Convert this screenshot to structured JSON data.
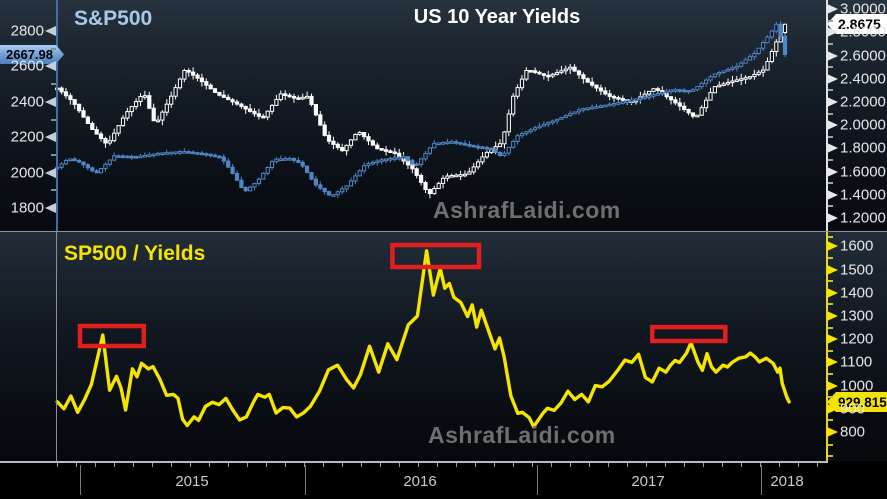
{
  "top_panel": {
    "sp_label": "S&P500",
    "title": "US 10 Year Yields",
    "watermark": "AshrafLaidi.com",
    "sp_badge": "2667.98",
    "yield_badge": "2.8675",
    "left_axis_ticks": [
      "2800",
      "2600",
      "2400",
      "2200",
      "2000",
      "1800"
    ],
    "right_axis_ticks": [
      "3.0000",
      "2.8000",
      "2.6000",
      "2.4000",
      "2.2000",
      "2.0000",
      "1.8000",
      "1.6000",
      "1.4000",
      "1.2000"
    ]
  },
  "bottom_panel": {
    "title": "SP500 / Yields",
    "watermark": "AshrafLaidi.com",
    "ratio_badge": "929.8159",
    "right_axis_ticks": [
      "1600",
      "1500",
      "1400",
      "1300",
      "1200",
      "1100",
      "1000",
      "900",
      "800"
    ]
  },
  "time_axis": {
    "year_labels": [
      "2015",
      "2016",
      "2017",
      "2018"
    ]
  },
  "colors": {
    "sp_blue": "#4f86c6",
    "sp_label_blue": "#a8c8e8",
    "yields_white": "#ffffff",
    "ratio_yellow": "#f5e400",
    "highlight_red": "#e01f1f",
    "watermark_gray": "#6f6f6f",
    "axis_blue": "#3d6fa8",
    "axis_yellow": "#e8d81a"
  },
  "chart_data": [
    {
      "type": "candlestick",
      "panel": "top",
      "title": "US 10 Year Yields",
      "x_range": [
        2014.9,
        2018.11
      ],
      "x_tick_years": [
        2015,
        2016,
        2017,
        2018
      ],
      "series": [
        {
          "name": "S&P500",
          "color_key": "sp_blue",
          "axis": "left",
          "axis_ticks": [
            2800,
            2600,
            2400,
            2200,
            2000,
            1800
          ],
          "last_value": 2667.98,
          "close_estimates": [
            [
              2014.9,
              2030
            ],
            [
              2014.95,
              2080
            ],
            [
              2015.0,
              2058
            ],
            [
              2015.07,
              1995
            ],
            [
              2015.15,
              2095
            ],
            [
              2015.25,
              2090
            ],
            [
              2015.35,
              2110
            ],
            [
              2015.45,
              2120
            ],
            [
              2015.55,
              2105
            ],
            [
              2015.62,
              2085
            ],
            [
              2015.68,
              1975
            ],
            [
              2015.72,
              1890
            ],
            [
              2015.78,
              1955
            ],
            [
              2015.85,
              2075
            ],
            [
              2015.92,
              2080
            ],
            [
              2015.97,
              2050
            ],
            [
              2016.03,
              1935
            ],
            [
              2016.1,
              1865
            ],
            [
              2016.17,
              1925
            ],
            [
              2016.25,
              2045
            ],
            [
              2016.33,
              2075
            ],
            [
              2016.42,
              2090
            ],
            [
              2016.47,
              2035
            ],
            [
              2016.55,
              2165
            ],
            [
              2016.63,
              2175
            ],
            [
              2016.72,
              2150
            ],
            [
              2016.8,
              2135
            ],
            [
              2016.85,
              2090
            ],
            [
              2016.92,
              2210
            ],
            [
              2017.0,
              2255
            ],
            [
              2017.1,
              2305
            ],
            [
              2017.2,
              2360
            ],
            [
              2017.3,
              2380
            ],
            [
              2017.4,
              2405
            ],
            [
              2017.5,
              2435
            ],
            [
              2017.6,
              2470
            ],
            [
              2017.68,
              2460
            ],
            [
              2017.78,
              2555
            ],
            [
              2017.88,
              2600
            ],
            [
              2017.96,
              2675
            ],
            [
              2018.03,
              2790
            ],
            [
              2018.06,
              2850
            ],
            [
              2018.09,
              2668
            ]
          ]
        },
        {
          "name": "US 10 Year Yields",
          "color_key": "yields_white",
          "axis": "right",
          "axis_ticks": [
            3.0,
            2.8,
            2.6,
            2.4,
            2.2,
            2.0,
            1.8,
            1.6,
            1.4,
            1.2
          ],
          "last_value": 2.8675,
          "close_estimates": [
            [
              2014.9,
              2.32
            ],
            [
              2014.97,
              2.2
            ],
            [
              2015.05,
              1.97
            ],
            [
              2015.12,
              1.83
            ],
            [
              2015.2,
              2.1
            ],
            [
              2015.28,
              2.28
            ],
            [
              2015.33,
              2.0
            ],
            [
              2015.4,
              2.25
            ],
            [
              2015.46,
              2.48
            ],
            [
              2015.52,
              2.4
            ],
            [
              2015.6,
              2.27
            ],
            [
              2015.7,
              2.17
            ],
            [
              2015.8,
              2.06
            ],
            [
              2015.88,
              2.27
            ],
            [
              2015.95,
              2.23
            ],
            [
              2016.0,
              2.25
            ],
            [
              2016.08,
              1.88
            ],
            [
              2016.15,
              1.78
            ],
            [
              2016.22,
              1.95
            ],
            [
              2016.3,
              1.8
            ],
            [
              2016.38,
              1.76
            ],
            [
              2016.46,
              1.62
            ],
            [
              2016.53,
              1.4
            ],
            [
              2016.6,
              1.56
            ],
            [
              2016.7,
              1.58
            ],
            [
              2016.78,
              1.76
            ],
            [
              2016.85,
              1.85
            ],
            [
              2016.9,
              2.25
            ],
            [
              2016.96,
              2.48
            ],
            [
              2017.05,
              2.42
            ],
            [
              2017.15,
              2.5
            ],
            [
              2017.22,
              2.38
            ],
            [
              2017.32,
              2.25
            ],
            [
              2017.42,
              2.2
            ],
            [
              2017.52,
              2.32
            ],
            [
              2017.62,
              2.18
            ],
            [
              2017.7,
              2.06
            ],
            [
              2017.78,
              2.33
            ],
            [
              2017.86,
              2.38
            ],
            [
              2017.94,
              2.42
            ],
            [
              2018.0,
              2.48
            ],
            [
              2018.04,
              2.66
            ],
            [
              2018.09,
              2.87
            ]
          ]
        }
      ]
    },
    {
      "type": "line",
      "panel": "bottom",
      "title": "SP500 / Yields",
      "color_key": "ratio_yellow",
      "last_value": 929.8159,
      "axis_ticks": [
        1600,
        1500,
        1400,
        1300,
        1200,
        1100,
        1000,
        900,
        800
      ],
      "points": [
        [
          2014.9,
          930
        ],
        [
          2014.93,
          900
        ],
        [
          2014.96,
          955
        ],
        [
          2014.99,
          885
        ],
        [
          2015.02,
          940
        ],
        [
          2015.05,
          1005
        ],
        [
          2015.1,
          1218
        ],
        [
          2015.13,
          980
        ],
        [
          2015.16,
          1040
        ],
        [
          2015.18,
          990
        ],
        [
          2015.2,
          895
        ],
        [
          2015.23,
          1072
        ],
        [
          2015.25,
          1038
        ],
        [
          2015.27,
          1096
        ],
        [
          2015.3,
          1072
        ],
        [
          2015.32,
          1082
        ],
        [
          2015.35,
          1028
        ],
        [
          2015.38,
          958
        ],
        [
          2015.41,
          962
        ],
        [
          2015.43,
          945
        ],
        [
          2015.45,
          855
        ],
        [
          2015.47,
          828
        ],
        [
          2015.5,
          865
        ],
        [
          2015.52,
          850
        ],
        [
          2015.55,
          910
        ],
        [
          2015.58,
          928
        ],
        [
          2015.61,
          918
        ],
        [
          2015.64,
          945
        ],
        [
          2015.67,
          895
        ],
        [
          2015.7,
          852
        ],
        [
          2015.73,
          865
        ],
        [
          2015.76,
          928
        ],
        [
          2015.78,
          962
        ],
        [
          2015.81,
          950
        ],
        [
          2015.83,
          962
        ],
        [
          2015.86,
          882
        ],
        [
          2015.89,
          905
        ],
        [
          2015.92,
          903
        ],
        [
          2015.95,
          865
        ],
        [
          2015.98,
          882
        ],
        [
          2016.01,
          910
        ],
        [
          2016.05,
          975
        ],
        [
          2016.09,
          1068
        ],
        [
          2016.13,
          1088
        ],
        [
          2016.17,
          1025
        ],
        [
          2016.2,
          990
        ],
        [
          2016.23,
          1047
        ],
        [
          2016.27,
          1170
        ],
        [
          2016.31,
          1058
        ],
        [
          2016.35,
          1180
        ],
        [
          2016.39,
          1112
        ],
        [
          2016.44,
          1262
        ],
        [
          2016.48,
          1300
        ],
        [
          2016.52,
          1581
        ],
        [
          2016.55,
          1390
        ],
        [
          2016.58,
          1505
        ],
        [
          2016.6,
          1420
        ],
        [
          2016.62,
          1440
        ],
        [
          2016.64,
          1380
        ],
        [
          2016.67,
          1358
        ],
        [
          2016.7,
          1298
        ],
        [
          2016.72,
          1348
        ],
        [
          2016.74,
          1252
        ],
        [
          2016.76,
          1325
        ],
        [
          2016.79,
          1242
        ],
        [
          2016.82,
          1158
        ],
        [
          2016.84,
          1205
        ],
        [
          2016.86,
          1125
        ],
        [
          2016.89,
          955
        ],
        [
          2016.92,
          880
        ],
        [
          2016.94,
          885
        ],
        [
          2016.97,
          862
        ],
        [
          2016.99,
          823
        ],
        [
          2017.03,
          880
        ],
        [
          2017.05,
          902
        ],
        [
          2017.08,
          893
        ],
        [
          2017.11,
          926
        ],
        [
          2017.14,
          976
        ],
        [
          2017.17,
          940
        ],
        [
          2017.2,
          962
        ],
        [
          2017.23,
          930
        ],
        [
          2017.26,
          1000
        ],
        [
          2017.29,
          995
        ],
        [
          2017.32,
          1018
        ],
        [
          2017.36,
          1068
        ],
        [
          2017.39,
          1110
        ],
        [
          2017.42,
          1100
        ],
        [
          2017.45,
          1135
        ],
        [
          2017.48,
          1035
        ],
        [
          2017.51,
          1016
        ],
        [
          2017.54,
          1075
        ],
        [
          2017.57,
          1058
        ],
        [
          2017.59,
          1088
        ],
        [
          2017.61,
          1108
        ],
        [
          2017.63,
          1100
        ],
        [
          2017.66,
          1140
        ],
        [
          2017.68,
          1185
        ],
        [
          2017.71,
          1102
        ],
        [
          2017.73,
          1066
        ],
        [
          2017.75,
          1138
        ],
        [
          2017.77,
          1080
        ],
        [
          2017.79,
          1058
        ],
        [
          2017.82,
          1088
        ],
        [
          2017.84,
          1080
        ],
        [
          2017.86,
          1100
        ],
        [
          2017.89,
          1118
        ],
        [
          2017.92,
          1124
        ],
        [
          2017.94,
          1140
        ],
        [
          2017.96,
          1124
        ],
        [
          2017.98,
          1102
        ],
        [
          2018.01,
          1118
        ],
        [
          2018.04,
          1096
        ],
        [
          2018.06,
          1058
        ],
        [
          2018.07,
          1075
        ],
        [
          2018.08,
          1010
        ],
        [
          2018.1,
          950
        ],
        [
          2018.11,
          929.8
        ]
      ],
      "highlight_boxes": [
        {
          "year_start": 2015.0,
          "year_end": 2015.28,
          "value_top": 1257,
          "value_bottom": 1171
        },
        {
          "year_start": 2016.37,
          "year_end": 2016.75,
          "value_top": 1606,
          "value_bottom": 1511
        },
        {
          "year_start": 2017.51,
          "year_end": 2017.83,
          "value_top": 1252,
          "value_bottom": 1192
        }
      ]
    }
  ]
}
